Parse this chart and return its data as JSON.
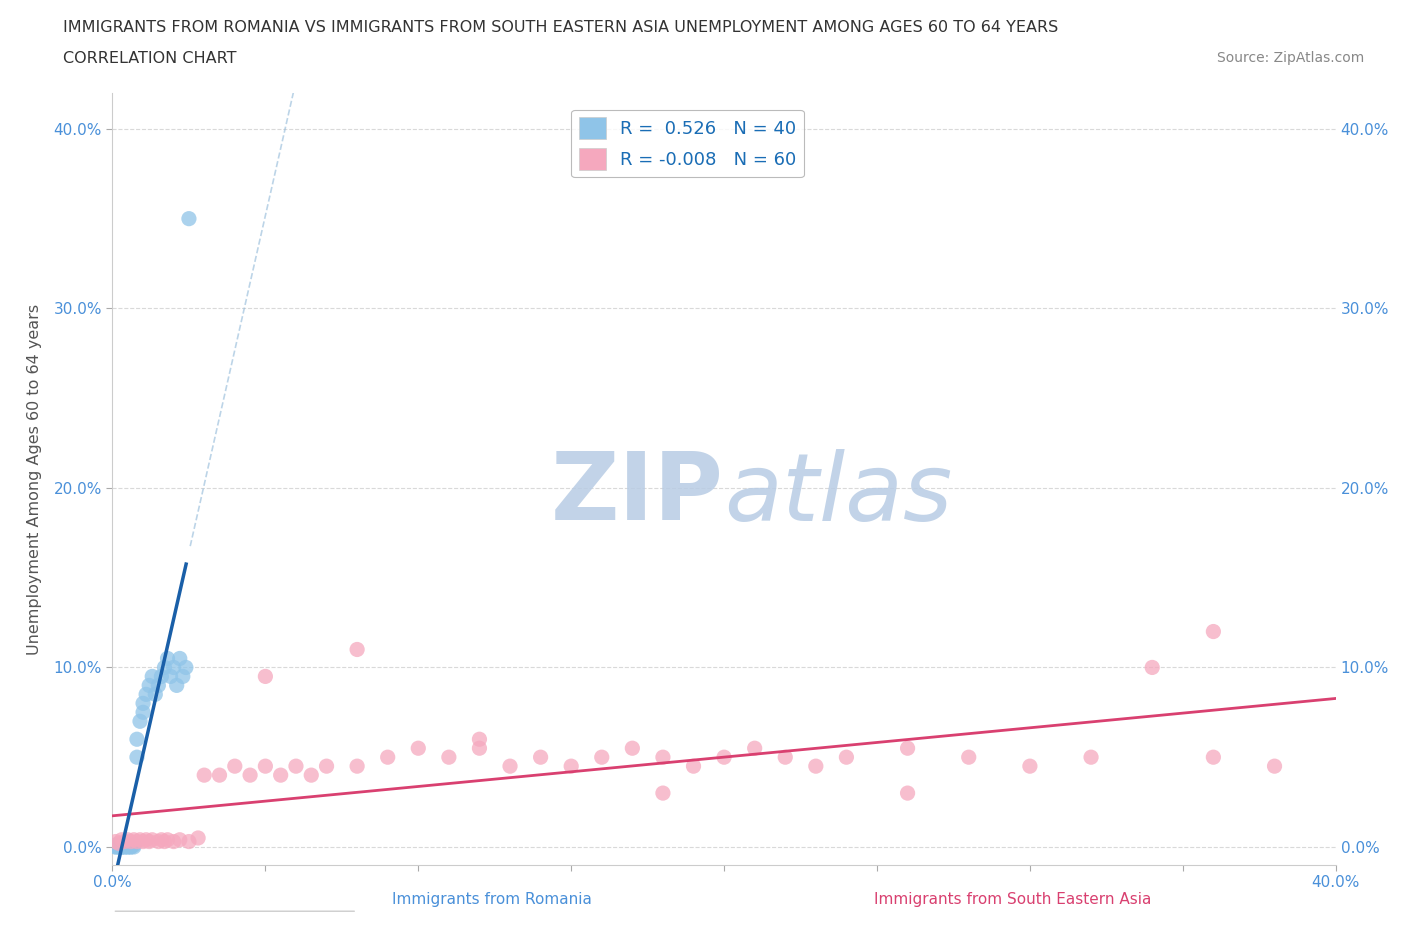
{
  "title_line1": "IMMIGRANTS FROM ROMANIA VS IMMIGRANTS FROM SOUTH EASTERN ASIA UNEMPLOYMENT AMONG AGES 60 TO 64 YEARS",
  "title_line2": "CORRELATION CHART",
  "source_text": "Source: ZipAtlas.com",
  "ylabel": "Unemployment Among Ages 60 to 64 years",
  "xlabel_romania": "Immigrants from Romania",
  "xlabel_sea": "Immigrants from South Eastern Asia",
  "r_romania": 0.526,
  "n_romania": 40,
  "r_sea": -0.008,
  "n_sea": 60,
  "xlim": [
    0.0,
    0.4
  ],
  "ylim": [
    -0.02,
    0.42
  ],
  "yticks": [
    0.0,
    0.1,
    0.2,
    0.3,
    0.4
  ],
  "color_romania": "#8fc4e8",
  "color_sea": "#f5a8be",
  "trendline_romania": "#1a5fa8",
  "trendline_sea": "#d94070",
  "watermark_color": "#c8d8e8",
  "romania_x": [
    0.001,
    0.001,
    0.001,
    0.002,
    0.002,
    0.002,
    0.003,
    0.003,
    0.003,
    0.003,
    0.004,
    0.004,
    0.004,
    0.005,
    0.005,
    0.005,
    0.006,
    0.006,
    0.007,
    0.007,
    0.008,
    0.008,
    0.009,
    0.01,
    0.01,
    0.011,
    0.012,
    0.013,
    0.014,
    0.015,
    0.016,
    0.017,
    0.018,
    0.019,
    0.02,
    0.021,
    0.022,
    0.023,
    0.024,
    0.025
  ],
  "romania_y": [
    0.0,
    0.001,
    -0.005,
    0.0,
    -0.003,
    0.001,
    0.0,
    -0.004,
    0.001,
    -0.002,
    0.0,
    0.001,
    -0.003,
    0.0,
    0.001,
    -0.002,
    0.0,
    -0.001,
    0.0,
    0.001,
    0.05,
    0.06,
    0.07,
    0.075,
    0.08,
    0.085,
    0.09,
    0.095,
    0.085,
    0.09,
    0.095,
    0.1,
    0.105,
    0.095,
    0.1,
    0.09,
    0.105,
    0.095,
    0.1,
    0.35
  ],
  "sea_x": [
    0.001,
    0.002,
    0.003,
    0.004,
    0.005,
    0.006,
    0.007,
    0.008,
    0.009,
    0.01,
    0.011,
    0.012,
    0.013,
    0.015,
    0.016,
    0.017,
    0.018,
    0.02,
    0.022,
    0.025,
    0.028,
    0.03,
    0.035,
    0.04,
    0.045,
    0.05,
    0.055,
    0.06,
    0.065,
    0.07,
    0.08,
    0.09,
    0.1,
    0.11,
    0.12,
    0.13,
    0.14,
    0.15,
    0.16,
    0.17,
    0.18,
    0.19,
    0.2,
    0.21,
    0.22,
    0.23,
    0.24,
    0.26,
    0.28,
    0.3,
    0.32,
    0.34,
    0.36,
    0.38,
    0.05,
    0.08,
    0.12,
    0.18,
    0.26,
    0.36
  ],
  "sea_y": [
    0.003,
    0.002,
    0.004,
    0.003,
    0.004,
    0.003,
    0.004,
    0.003,
    0.004,
    0.003,
    0.004,
    0.003,
    0.004,
    0.003,
    0.004,
    0.003,
    0.004,
    0.003,
    0.004,
    0.003,
    0.005,
    0.04,
    0.04,
    0.045,
    0.04,
    0.045,
    0.04,
    0.045,
    0.04,
    0.045,
    0.045,
    0.05,
    0.055,
    0.05,
    0.055,
    0.045,
    0.05,
    0.045,
    0.05,
    0.055,
    0.05,
    0.045,
    0.05,
    0.055,
    0.05,
    0.045,
    0.05,
    0.055,
    0.05,
    0.045,
    0.05,
    0.1,
    0.05,
    0.045,
    0.095,
    0.11,
    0.06,
    0.03,
    0.03,
    0.12
  ]
}
